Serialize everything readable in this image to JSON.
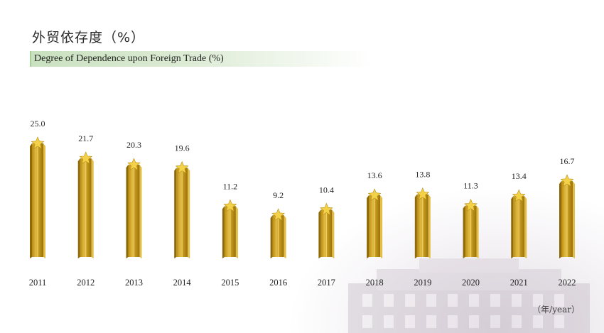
{
  "title_cn": "外贸依存度（%）",
  "title_en": "Degree of Dependence upon Foreign Trade (%)",
  "unit_label": "（年/year）",
  "colors": {
    "bar_front": "#c79a1c",
    "bar_light": "#e3bd45",
    "bar_dark": "#8f6a08",
    "star": "#f3d24a",
    "text": "#222222"
  },
  "chart_data": {
    "type": "bar",
    "title": "外贸依存度（%）",
    "subtitle": "Degree of Dependence upon Foreign Trade (%)",
    "xlabel": "（年/year）",
    "ylabel": "",
    "categories": [
      "2011",
      "2012",
      "2013",
      "2014",
      "2015",
      "2016",
      "2017",
      "2018",
      "2019",
      "2020",
      "2021",
      "2022"
    ],
    "values": [
      25.0,
      21.7,
      20.3,
      19.6,
      11.2,
      9.2,
      10.4,
      13.6,
      13.8,
      11.3,
      13.4,
      16.7
    ],
    "value_labels": [
      "25.0",
      "21.7",
      "20.3",
      "19.6",
      "11.2",
      "9.2",
      "10.4",
      "13.6",
      "13.8",
      "11.3",
      "13.4",
      "16.7"
    ],
    "ylim": [
      0,
      25
    ],
    "grid": false,
    "legend": "none"
  }
}
